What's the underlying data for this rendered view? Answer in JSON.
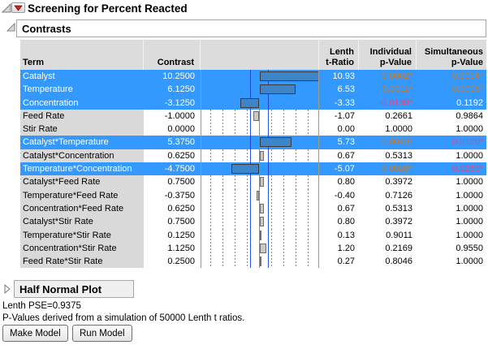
{
  "window": {
    "title": "Screening for Percent Reacted"
  },
  "sections": {
    "contrasts_title": "Contrasts",
    "half_normal_title": "Half Normal Plot"
  },
  "table": {
    "columns": {
      "term": "Term",
      "contrast": "Contrast",
      "lenth_l1": "Lenth",
      "lenth_l2": "t-Ratio",
      "ind_l1": "Individual",
      "ind_l2": "p-Value",
      "sim_l1": "Simultaneous",
      "sim_l2": "p-Value"
    },
    "rows": [
      {
        "term": "Catalyst",
        "contrast": "10.2500",
        "value": 10.25,
        "t_ratio": "10.93",
        "p_individual": "0.0002*",
        "p_ind_level": "sig1",
        "p_simultaneous": "0.0014*",
        "p_sim_level": "sig1",
        "selected": true
      },
      {
        "term": "Temperature",
        "contrast": "6.1250",
        "value": 6.125,
        "t_ratio": "6.53",
        "p_individual": "0.0011*",
        "p_ind_level": "sig1",
        "p_simultaneous": "0.0095*",
        "p_sim_level": "sig1",
        "selected": true
      },
      {
        "term": "Concentration",
        "contrast": "-3.1250",
        "value": -3.125,
        "t_ratio": "-3.33",
        "p_individual": "0.0138*",
        "p_ind_level": "sig2",
        "p_simultaneous": "0.1192",
        "p_sim_level": "none",
        "selected": true
      },
      {
        "term": "Feed Rate",
        "contrast": "-1.0000",
        "value": -1.0,
        "t_ratio": "-1.07",
        "p_individual": "0.2661",
        "p_ind_level": "none",
        "p_simultaneous": "0.9864",
        "p_sim_level": "none",
        "selected": false
      },
      {
        "term": "Stir Rate",
        "contrast": "0.0000",
        "value": 0.0,
        "t_ratio": "0.00",
        "p_individual": "1.0000",
        "p_ind_level": "none",
        "p_simultaneous": "1.0000",
        "p_sim_level": "none",
        "selected": false
      },
      {
        "term": "Catalyst*Temperature",
        "contrast": "5.3750",
        "value": 5.375,
        "t_ratio": "5.73",
        "p_individual": "0.0018*",
        "p_ind_level": "sig1",
        "p_simultaneous": "0.0160*",
        "p_sim_level": "sig2",
        "selected": true
      },
      {
        "term": "Catalyst*Concentration",
        "contrast": "0.6250",
        "value": 0.625,
        "t_ratio": "0.67",
        "p_individual": "0.5313",
        "p_ind_level": "none",
        "p_simultaneous": "1.0000",
        "p_sim_level": "none",
        "selected": false
      },
      {
        "term": "Temperature*Concentration",
        "contrast": "-4.7500",
        "value": -4.75,
        "t_ratio": "-5.07",
        "p_individual": "0.0028*",
        "p_ind_level": "sig1",
        "p_simultaneous": "0.0260*",
        "p_sim_level": "sig2",
        "selected": true
      },
      {
        "term": "Catalyst*Feed Rate",
        "contrast": "0.7500",
        "value": 0.75,
        "t_ratio": "0.80",
        "p_individual": "0.3972",
        "p_ind_level": "none",
        "p_simultaneous": "1.0000",
        "p_sim_level": "none",
        "selected": false
      },
      {
        "term": "Temperature*Feed Rate",
        "contrast": "-0.3750",
        "value": -0.375,
        "t_ratio": "-0.40",
        "p_individual": "0.7126",
        "p_ind_level": "none",
        "p_simultaneous": "1.0000",
        "p_sim_level": "none",
        "selected": false
      },
      {
        "term": "Concentration*Feed Rate",
        "contrast": "0.6250",
        "value": 0.625,
        "t_ratio": "0.67",
        "p_individual": "0.5313",
        "p_ind_level": "none",
        "p_simultaneous": "1.0000",
        "p_sim_level": "none",
        "selected": false
      },
      {
        "term": "Catalyst*Stir Rate",
        "contrast": "0.7500",
        "value": 0.75,
        "t_ratio": "0.80",
        "p_individual": "0.3972",
        "p_ind_level": "none",
        "p_simultaneous": "1.0000",
        "p_sim_level": "none",
        "selected": false
      },
      {
        "term": "Temperature*Stir Rate",
        "contrast": "0.1250",
        "value": 0.125,
        "t_ratio": "0.13",
        "p_individual": "0.9011",
        "p_ind_level": "none",
        "p_simultaneous": "1.0000",
        "p_sim_level": "none",
        "selected": false
      },
      {
        "term": "Concentration*Stir Rate",
        "contrast": "1.1250",
        "value": 1.125,
        "t_ratio": "1.20",
        "p_individual": "0.2169",
        "p_ind_level": "none",
        "p_simultaneous": "0.9550",
        "p_sim_level": "none",
        "selected": false
      },
      {
        "term": "Feed Rate*Stir Rate",
        "contrast": "0.2500",
        "value": 0.25,
        "t_ratio": "0.27",
        "p_individual": "0.8046",
        "p_ind_level": "none",
        "p_simultaneous": "1.0000",
        "p_sim_level": "none",
        "selected": false
      }
    ]
  },
  "footer": {
    "lenth_pse": "Lenth PSE=0.9375",
    "pvalue_note": "P-Values derived from a simulation of 50000 Lenth t ratios.",
    "make_model_label": "Make Model",
    "run_model_label": "Run Model"
  },
  "colors": {
    "selection_blue": "#3399ff",
    "bar_fill_selected": "#3d85c8",
    "bar_fill_unselected": "#c9c9c9",
    "reference_line_blue": "#1f52e0",
    "p_value_orange": "#c8792b",
    "p_value_pink": "#ee4477",
    "term_cell_gray": "#d9d9d9",
    "header_gray": "#dcdcdc",
    "red_triangle": "#cc2222"
  }
}
